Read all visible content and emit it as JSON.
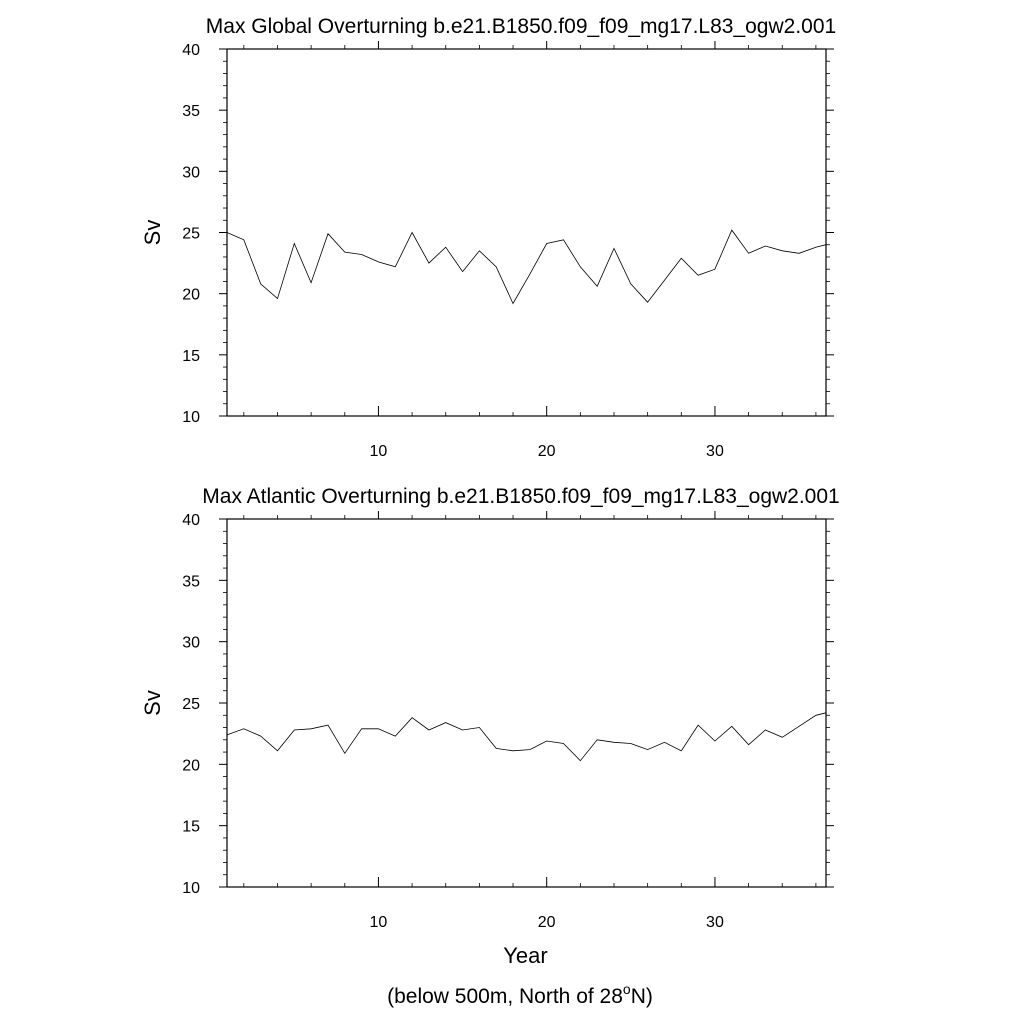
{
  "chart_data": [
    {
      "type": "line",
      "title": "Max Global Overturning b.e21.B1850.f09_f09_mg17.L83_ogw2.001",
      "xlabel": "",
      "ylabel": "Sv",
      "xlim": [
        1,
        36.6
      ],
      "ylim": [
        10,
        40
      ],
      "xticks": [
        10,
        20,
        30
      ],
      "yticks": [
        10,
        15,
        20,
        25,
        30,
        35,
        40
      ],
      "grid": false,
      "x": [
        1,
        2,
        3,
        4,
        5,
        6,
        7,
        8,
        9,
        10,
        11,
        12,
        13,
        14,
        15,
        16,
        17,
        18,
        19,
        20,
        21,
        22,
        23,
        24,
        25,
        26,
        27,
        28,
        29,
        30,
        31,
        32,
        33,
        34,
        35,
        36,
        36.6
      ],
      "series": [
        {
          "values": [
            25.0,
            24.4,
            20.8,
            19.6,
            24.1,
            20.9,
            24.9,
            23.4,
            23.2,
            22.6,
            22.2,
            25.0,
            22.5,
            23.8,
            21.8,
            23.5,
            22.2,
            19.2,
            21.6,
            24.1,
            24.4,
            22.2,
            20.6,
            23.7,
            20.8,
            19.3,
            21.1,
            22.9,
            21.5,
            22.0,
            25.2,
            23.3,
            23.9,
            23.5,
            23.3,
            23.8,
            24.0
          ]
        }
      ]
    },
    {
      "type": "line",
      "title": "Max Atlantic Overturning b.e21.B1850.f09_f09_mg17.L83_ogw2.001",
      "xlabel": "Year",
      "ylabel": "Sv",
      "xlim": [
        1,
        36.6
      ],
      "ylim": [
        10,
        40
      ],
      "xticks": [
        10,
        20,
        30
      ],
      "yticks": [
        10,
        15,
        20,
        25,
        30,
        35,
        40
      ],
      "grid": false,
      "x": [
        1,
        2,
        3,
        4,
        5,
        6,
        7,
        8,
        9,
        10,
        11,
        12,
        13,
        14,
        15,
        16,
        17,
        18,
        19,
        20,
        21,
        22,
        23,
        24,
        25,
        26,
        27,
        28,
        29,
        30,
        31,
        32,
        33,
        34,
        35,
        36,
        36.6
      ],
      "series": [
        {
          "values": [
            22.4,
            22.9,
            22.3,
            21.1,
            22.8,
            22.9,
            23.2,
            20.9,
            22.9,
            22.9,
            22.3,
            23.8,
            22.8,
            23.4,
            22.8,
            23.0,
            21.3,
            21.1,
            21.2,
            21.9,
            21.7,
            20.3,
            22.0,
            21.8,
            21.7,
            21.2,
            21.8,
            21.1,
            23.2,
            21.9,
            23.1,
            21.6,
            22.8,
            22.2,
            23.1,
            24.0,
            24.2
          ]
        }
      ]
    }
  ],
  "footnote": {
    "prefix": "(below 500m, North of 28",
    "superscript": "o",
    "suffix": "N)"
  }
}
